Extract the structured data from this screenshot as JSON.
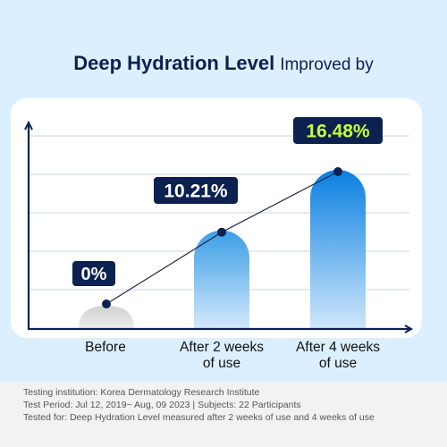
{
  "header": {
    "title_strong": "Deep Hydration Level",
    "title_light": "Improved by"
  },
  "chart_data": {
    "type": "bar",
    "categories": [
      "Before",
      "After 2 weeks of use",
      "After 4 weeks of use"
    ],
    "category_lines": [
      [
        "Before"
      ],
      [
        "After 2 weeks",
        "of use"
      ],
      [
        "After 4 weeks",
        "of use"
      ]
    ],
    "values": [
      0,
      10.21,
      16.48
    ],
    "data_labels": [
      "0%",
      "10.21%",
      "16.48%"
    ],
    "ylim": [
      0,
      20
    ],
    "grid": true,
    "trend_line": true,
    "colors": {
      "bar_before": "#d6d6d6",
      "bar_gradient_top": "#3b9ee6",
      "bar_gradient_bottom": "#d3e9fb",
      "bar_highlight_top": "#0a7fe0",
      "label_bg": "#0c2150",
      "label_text": "#ffffff",
      "highlight_label_text": "#c6ff3a",
      "axis": "#0c2150",
      "grid": "#cfd6e2"
    }
  },
  "footer": {
    "line1": "Testing institution: Korea Dermatology Research Institute",
    "line2": "Test Period: Jul 12, 2019~ Aug, 09 2023  |  Subjects: 22 Participants",
    "line3": "Tested for: Deep Hydration Level measured after 2 weeks of use and 4 weeks of use"
  }
}
